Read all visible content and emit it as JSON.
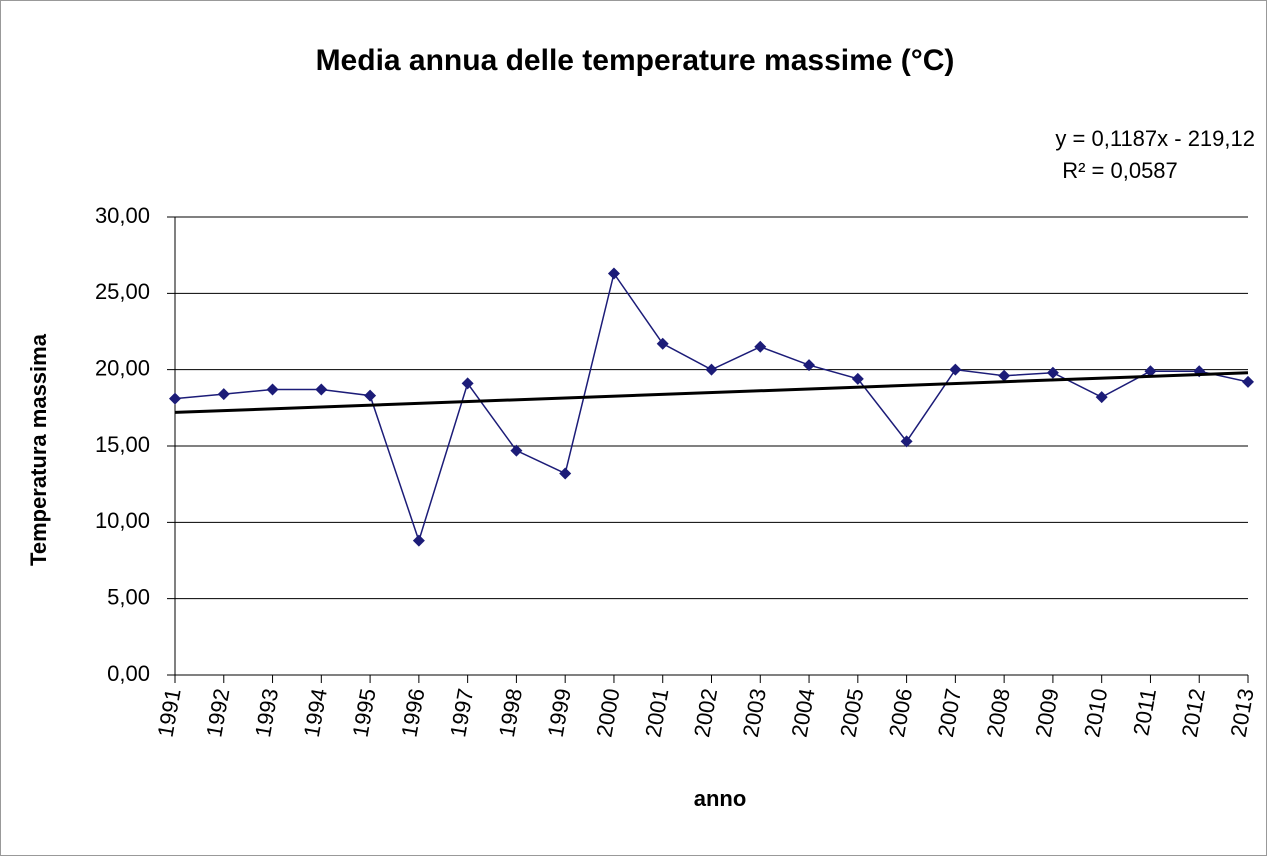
{
  "chart_data": {
    "type": "line",
    "title": "Media annua delle temperature massime (°C)",
    "x_label": "anno",
    "y_label": "Temperatura massima",
    "categories": [
      "1991",
      "1992",
      "1993",
      "1994",
      "1995",
      "1996",
      "1997",
      "1998",
      "1999",
      "2000",
      "2001",
      "2002",
      "2003",
      "2004",
      "2005",
      "2006",
      "2007",
      "2008",
      "2009",
      "2010",
      "2011",
      "2012",
      "2013"
    ],
    "series": [
      {
        "color": "#1c1c78",
        "values": [
          18.1,
          18.4,
          18.7,
          18.7,
          18.3,
          8.8,
          19.1,
          14.7,
          13.2,
          26.3,
          21.7,
          20.0,
          21.5,
          20.3,
          19.4,
          15.3,
          20.0,
          19.6,
          19.8,
          18.2,
          19.9,
          19.9,
          19.2
        ]
      }
    ],
    "trendline": {
      "color": "#000000",
      "values": [
        17.2,
        19.8
      ],
      "equation": "y = 0,1187x - 219,12",
      "r_squared": "R² = 0,0587"
    },
    "ylim": [
      0,
      30
    ],
    "yticks": [
      {
        "value": 0,
        "label": "0,00"
      },
      {
        "value": 5,
        "label": "5,00"
      },
      {
        "value": 10,
        "label": "10,00"
      },
      {
        "value": 15,
        "label": "15,00"
      },
      {
        "value": 20,
        "label": "20,00"
      },
      {
        "value": 25,
        "label": "25,00"
      },
      {
        "value": 30,
        "label": "30,00"
      }
    ],
    "grid": true
  }
}
